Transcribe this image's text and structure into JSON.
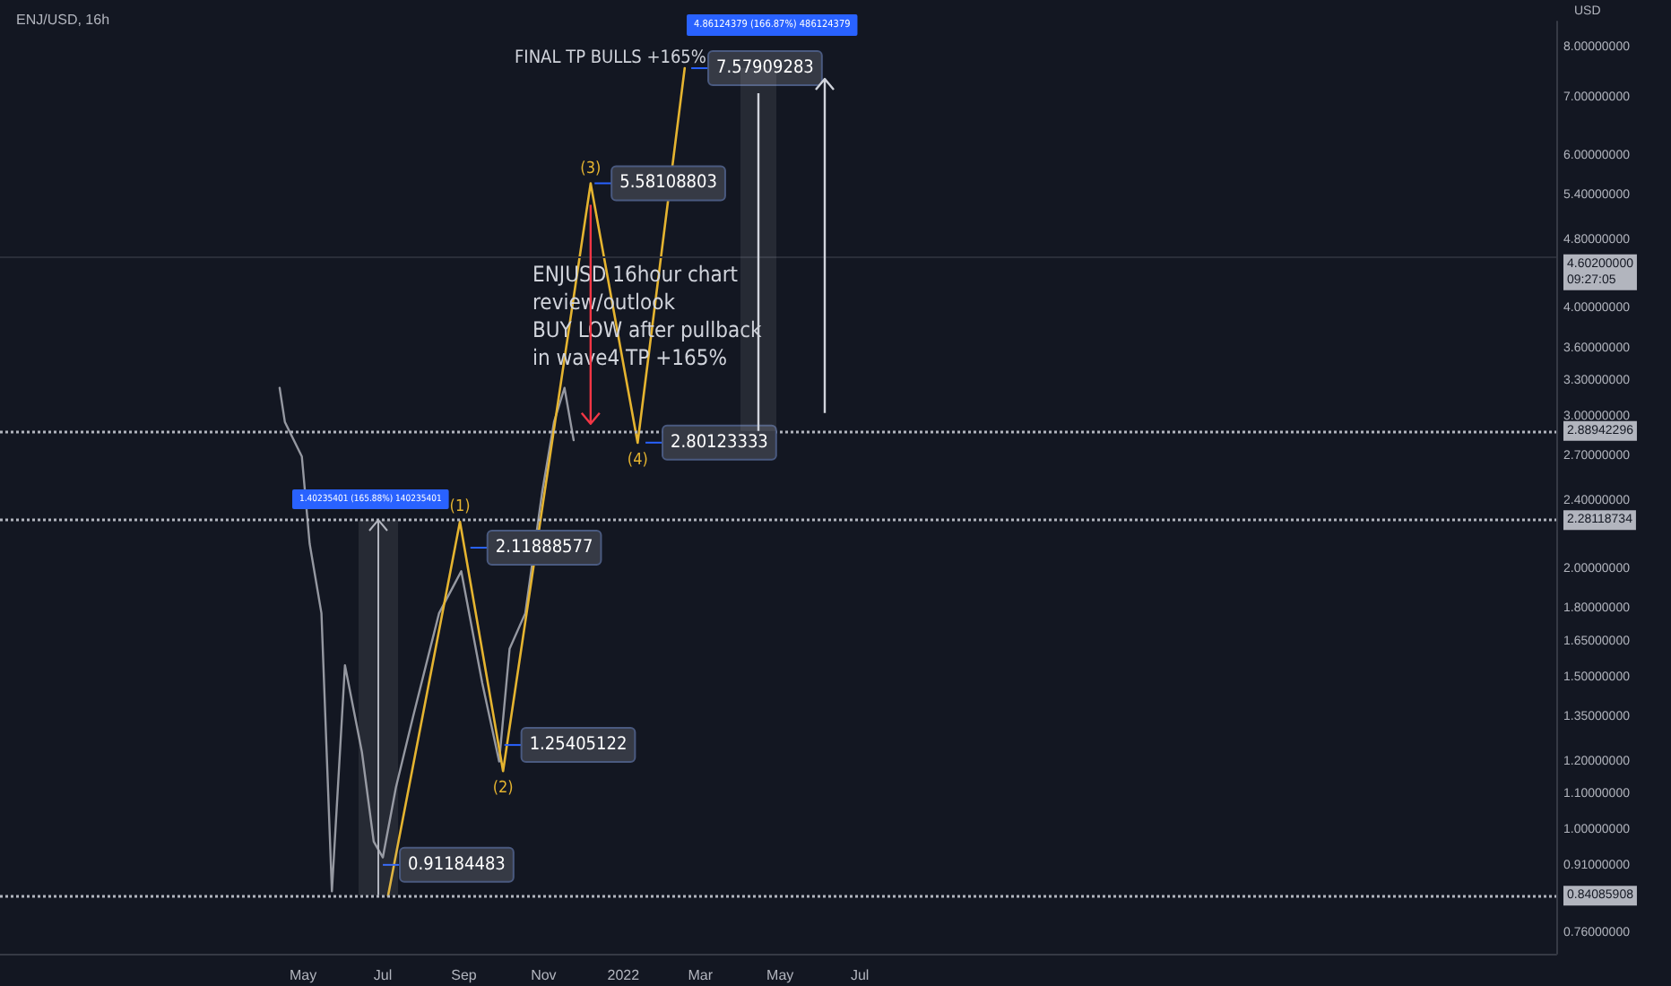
{
  "chart_data": {
    "type": "line",
    "title": "ENJ/USD, 16h",
    "ylabel": "USD",
    "log": true,
    "grid": false,
    "marker": "none",
    "series": [
      {
        "color": "#9598a1",
        "x": [
          "2021-04-13",
          "2021-04-17",
          "2021-04-30",
          "2021-05-06",
          "2021-05-15",
          "2021-05-23",
          "2021-06-02",
          "2021-06-15",
          "2021-06-24",
          "2021-07-01",
          "2021-07-11",
          "2021-07-24",
          "2021-08-13",
          "2021-08-30",
          "2021-09-15",
          "2021-09-28",
          "2021-10-06",
          "2021-10-18",
          "2021-10-31",
          "2021-11-09",
          "2021-11-17",
          "2021-11-24"
        ],
        "values": [
          3.24,
          2.96,
          2.7,
          2.14,
          1.78,
          0.85,
          1.55,
          1.23,
          0.97,
          0.93,
          1.12,
          1.35,
          1.78,
          1.99,
          1.48,
          1.2,
          1.62,
          1.78,
          2.46,
          2.96,
          3.24,
          2.82
        ]
      },
      {
        "color": "#e5b430",
        "x": [
          "2021-07-05",
          "2021-08-29",
          "2021-10-01",
          "2021-12-07",
          "2022-01-12",
          "2022-02-17"
        ],
        "values": [
          0.84,
          2.27,
          1.17,
          5.58,
          2.8,
          7.58
        ]
      }
    ],
    "xlim": [
      "2020-09-11",
      "2023-12-16"
    ],
    "xticks": [
      {
        "value": "2021-05",
        "label": "May"
      },
      {
        "value": "2021-07",
        "label": "Jul"
      },
      {
        "value": "2021-09",
        "label": "Sep"
      },
      {
        "value": "2021-11",
        "label": "Nov"
      },
      {
        "value": "2022-01",
        "label": "2022"
      },
      {
        "value": "2022-03",
        "label": "Mar"
      },
      {
        "value": "2022-05",
        "label": "May"
      },
      {
        "value": "2022-07",
        "label": "Jul"
      }
    ],
    "ylim": [
      0.72,
      8.58
    ],
    "yticks": [
      {
        "value": 0.76,
        "label": "0.76000000"
      },
      {
        "value": 0.91,
        "label": "0.91000000"
      },
      {
        "value": 1,
        "label": "1.00000000"
      },
      {
        "value": 1.1,
        "label": "1.10000000"
      },
      {
        "value": 1.2,
        "label": "1.20000000"
      },
      {
        "value": 1.35,
        "label": "1.35000000"
      },
      {
        "value": 1.5,
        "label": "1.50000000"
      },
      {
        "value": 1.65,
        "label": "1.65000000"
      },
      {
        "value": 1.8,
        "label": "1.80000000"
      },
      {
        "value": 2,
        "label": "2.00000000"
      },
      {
        "value": 2.4,
        "label": "2.40000000"
      },
      {
        "value": 2.7,
        "label": "2.70000000"
      },
      {
        "value": 3,
        "label": "3.00000000"
      },
      {
        "value": 3.3,
        "label": "3.30000000"
      },
      {
        "value": 3.6,
        "label": "3.60000000"
      },
      {
        "value": 4,
        "label": "4.00000000"
      },
      {
        "value": 4.8,
        "label": "4.80000000"
      },
      {
        "value": 5.4,
        "label": "5.40000000"
      },
      {
        "value": 6,
        "label": "6.00000000"
      },
      {
        "value": 7,
        "label": "7.00000000"
      },
      {
        "value": 8,
        "label": "8.00000000"
      }
    ],
    "ref_lines": [
      {
        "axis": "y",
        "value": 2.88942296,
        "label": "2.88942296",
        "line_style": "dotted",
        "color": "#b2b5be"
      },
      {
        "axis": "y",
        "value": 2.28118734,
        "label": "2.28118734",
        "line_style": "dotted",
        "color": "#b2b5be"
      },
      {
        "axis": "y",
        "value": 0.84085908,
        "label": "0.84085908",
        "line_style": "dotted",
        "color": "#b2b5be"
      },
      {
        "axis": "y",
        "value": 4.602,
        "label": "4.60200000\n09:27:05",
        "line_style": "solid",
        "color": "#2a2e39"
      }
    ],
    "annotations": [
      "ENJUSD 16hour chart\nreview/outlook\nBUY LOW after pullback\nin wave4 TP +165%",
      "FINAL TP BULLS +165%",
      {
        "text": "(1)",
        "x": "2021-08-29",
        "y": 2.27
      },
      {
        "text": "(2)",
        "x": "2021-10-01",
        "y": 1.17
      },
      {
        "text": "(3)",
        "x": "2021-12-07",
        "y": 5.58
      },
      {
        "text": "(4)",
        "x": "2022-01-12",
        "y": 2.8
      },
      {
        "text": "0.91184483",
        "x": "2021-07-01",
        "y": 0.91184483
      },
      {
        "text": "2.11888577",
        "x": "2021-09-06",
        "y": 2.11888577
      },
      {
        "text": "1.25405122",
        "x": "2021-10-02",
        "y": 1.25405122
      },
      {
        "text": "5.58108803",
        "x": "2021-12-10",
        "y": 5.58108803
      },
      {
        "text": "2.80123333",
        "x": "2022-01-18",
        "y": 2.80123333
      },
      {
        "text": "7.57909283",
        "x": "2022-02-22",
        "y": 7.57909283
      },
      "1.40235401 (165.88%) 140235401",
      "4.86124379 (166.87%) 486124379"
    ]
  }
}
